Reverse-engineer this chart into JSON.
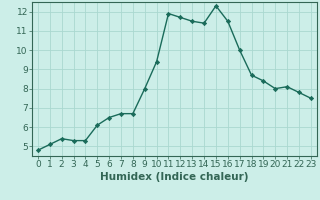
{
  "x": [
    0,
    1,
    2,
    3,
    4,
    5,
    6,
    7,
    8,
    9,
    10,
    11,
    12,
    13,
    14,
    15,
    16,
    17,
    18,
    19,
    20,
    21,
    22,
    23
  ],
  "y": [
    4.8,
    5.1,
    5.4,
    5.3,
    5.3,
    6.1,
    6.5,
    6.7,
    6.7,
    8.0,
    9.4,
    11.9,
    11.7,
    11.5,
    11.4,
    12.3,
    11.5,
    10.0,
    8.7,
    8.4,
    8.0,
    8.1,
    7.8,
    7.5
  ],
  "line_color": "#1a6b5a",
  "marker": "D",
  "marker_size": 2.2,
  "bg_color": "#cceee8",
  "grid_color": "#aad8d0",
  "xlabel": "Humidex (Indice chaleur)",
  "xlim": [
    -0.5,
    23.5
  ],
  "ylim": [
    4.5,
    12.5
  ],
  "yticks": [
    5,
    6,
    7,
    8,
    9,
    10,
    11,
    12
  ],
  "xticks": [
    0,
    1,
    2,
    3,
    4,
    5,
    6,
    7,
    8,
    9,
    10,
    11,
    12,
    13,
    14,
    15,
    16,
    17,
    18,
    19,
    20,
    21,
    22,
    23
  ],
  "tick_fontsize": 6.5,
  "xlabel_fontsize": 7.5,
  "spine_color": "#336655",
  "linewidth": 1.0
}
